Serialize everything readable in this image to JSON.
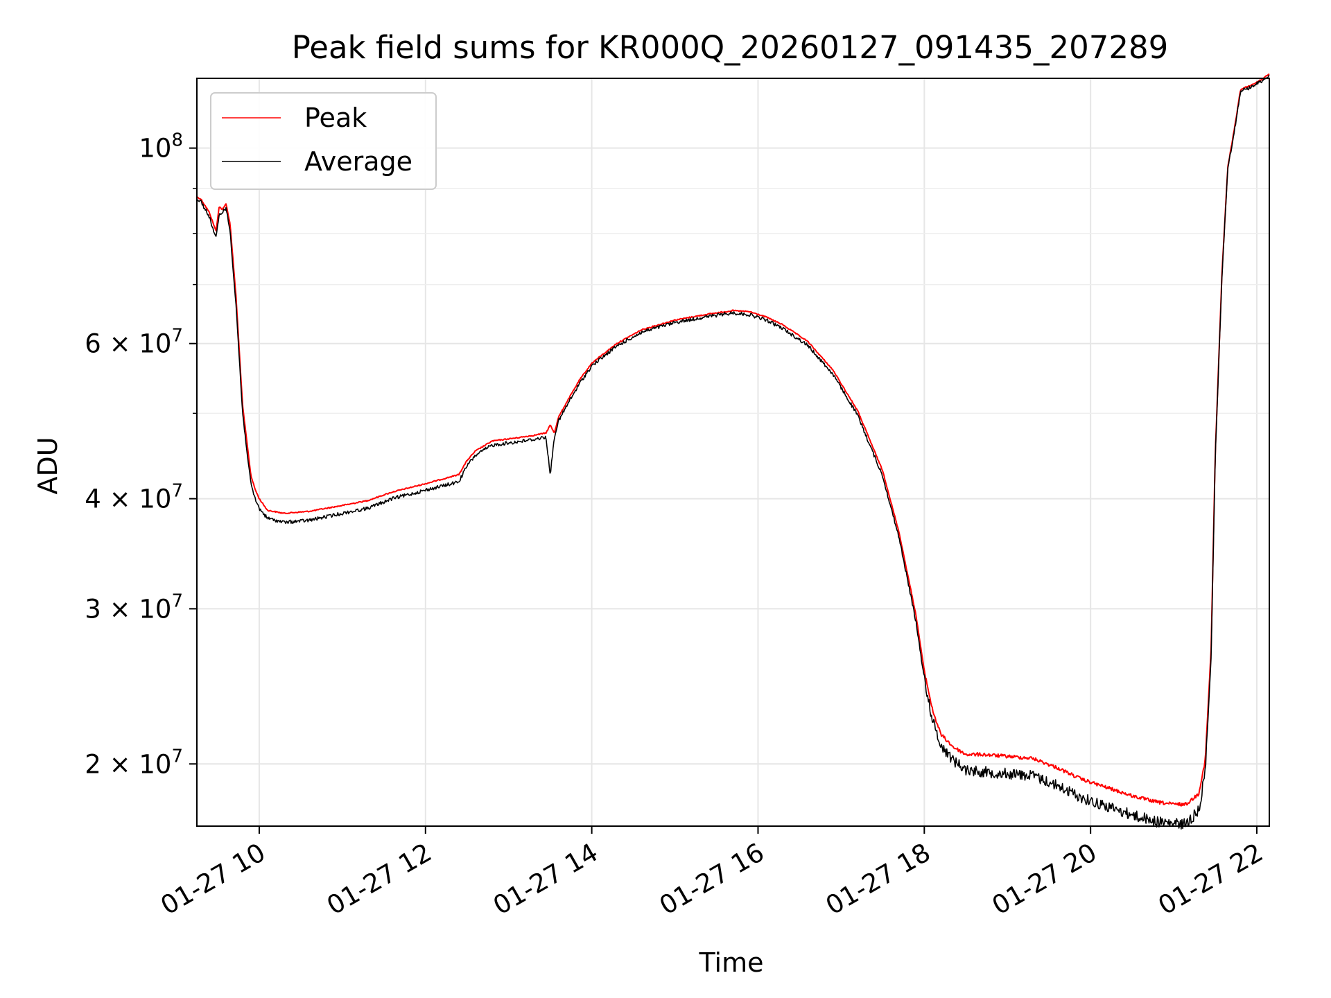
{
  "chart_data": {
    "type": "line",
    "title": "Peak field sums for KR000Q_20260127_091435_207289",
    "xlabel": "Time",
    "ylabel": "ADU",
    "y_scale": "log",
    "x_unit": "hours",
    "xlim": [
      9.25,
      22.15
    ],
    "ylim": [
      17000000,
      120000000
    ],
    "grid": true,
    "legend_position": "upper-left",
    "x_ticks": [
      {
        "value": 10,
        "label": "01-27 10"
      },
      {
        "value": 12,
        "label": "01-27 12"
      },
      {
        "value": 14,
        "label": "01-27 14"
      },
      {
        "value": 16,
        "label": "01-27 16"
      },
      {
        "value": 18,
        "label": "01-27 18"
      },
      {
        "value": 20,
        "label": "01-27 20"
      },
      {
        "value": 22,
        "label": "01-27 22"
      }
    ],
    "y_major_ticks": [
      {
        "value": 20000000,
        "coef": "2",
        "exp": "7"
      },
      {
        "value": 30000000,
        "coef": "3",
        "exp": "7"
      },
      {
        "value": 40000000,
        "coef": "4",
        "exp": "7"
      },
      {
        "value": 60000000,
        "coef": "6",
        "exp": "7"
      },
      {
        "value": 100000000,
        "coef": "",
        "exp": "8"
      }
    ],
    "y_minor_ticks": [
      50000000,
      70000000,
      80000000,
      90000000
    ],
    "series": [
      {
        "name": "Peak",
        "color": "#ff0000",
        "noise": 0.5,
        "x": [
          9.25,
          9.3,
          9.4,
          9.48,
          9.52,
          9.55,
          9.6,
          9.65,
          9.72,
          9.8,
          9.9,
          9.95,
          10.0,
          10.1,
          10.3,
          10.6,
          11.0,
          11.3,
          11.6,
          12.0,
          12.4,
          12.5,
          12.6,
          12.8,
          13.1,
          13.3,
          13.45,
          13.5,
          13.55,
          13.6,
          13.7,
          13.85,
          14.0,
          14.3,
          14.6,
          15.0,
          15.4,
          15.7,
          15.9,
          16.1,
          16.3,
          16.6,
          16.9,
          17.2,
          17.5,
          17.7,
          17.9,
          18.0,
          18.1,
          18.2,
          18.35,
          18.5,
          18.7,
          19.0,
          19.3,
          19.6,
          19.9,
          20.2,
          20.5,
          20.8,
          21.0,
          21.15,
          21.3,
          21.38,
          21.45,
          21.5,
          21.58,
          21.65,
          21.75,
          21.8,
          21.82,
          21.9,
          22.05,
          22.15
        ],
        "y": [
          88000000,
          87500000,
          84500000,
          80500000,
          86000000,
          85000000,
          86500000,
          82000000,
          68000000,
          51000000,
          42500000,
          41000000,
          40000000,
          38800000,
          38500000,
          38700000,
          39300000,
          39800000,
          40700000,
          41600000,
          42600000,
          44200000,
          45300000,
          46500000,
          46900000,
          47200000,
          47500000,
          48500000,
          47500000,
          49500000,
          51500000,
          54500000,
          57000000,
          60000000,
          62200000,
          63800000,
          64800000,
          65400000,
          65200000,
          64300000,
          63000000,
          60300000,
          56000000,
          50300000,
          43000000,
          36500000,
          29500000,
          25500000,
          23000000,
          21600000,
          20900000,
          20500000,
          20500000,
          20400000,
          20300000,
          19800000,
          19200000,
          18800000,
          18400000,
          18100000,
          18000000,
          18000000,
          18500000,
          20200000,
          27000000,
          45000000,
          72000000,
          95000000,
          108000000,
          116000000,
          116800000,
          117500000,
          119500000,
          121500000
        ]
      },
      {
        "name": "Average",
        "color": "#000000",
        "noise": 1.6,
        "x": [
          9.25,
          9.3,
          9.4,
          9.48,
          9.52,
          9.55,
          9.6,
          9.65,
          9.72,
          9.8,
          9.9,
          9.95,
          10.0,
          10.1,
          10.3,
          10.6,
          11.0,
          11.3,
          11.6,
          12.0,
          12.4,
          12.5,
          12.6,
          12.8,
          13.1,
          13.3,
          13.45,
          13.5,
          13.55,
          13.6,
          13.7,
          13.85,
          14.0,
          14.3,
          14.6,
          15.0,
          15.4,
          15.7,
          15.9,
          16.1,
          16.3,
          16.6,
          16.9,
          17.2,
          17.5,
          17.7,
          17.9,
          18.0,
          18.1,
          18.2,
          18.35,
          18.5,
          18.7,
          19.0,
          19.3,
          19.6,
          19.9,
          20.2,
          20.5,
          20.8,
          21.0,
          21.15,
          21.3,
          21.38,
          21.45,
          21.5,
          21.58,
          21.65,
          21.75,
          21.8,
          21.82,
          21.9,
          22.05,
          22.15
        ],
        "y": [
          87500000,
          87000000,
          83500000,
          79000000,
          84000000,
          84500000,
          85500000,
          80500000,
          66500000,
          50000000,
          41500000,
          40000000,
          39000000,
          38000000,
          37600000,
          37800000,
          38500000,
          39000000,
          40000000,
          40900000,
          41800000,
          43600000,
          44800000,
          46000000,
          46400000,
          46700000,
          47000000,
          42500000,
          47000000,
          49000000,
          51000000,
          54000000,
          56600000,
          59600000,
          61800000,
          63400000,
          64400000,
          65000000,
          64700000,
          63800000,
          62400000,
          59700000,
          55400000,
          49700000,
          42400000,
          36000000,
          29000000,
          25000000,
          22400000,
          21000000,
          20200000,
          19700000,
          19600000,
          19500000,
          19400000,
          18900000,
          18300000,
          17900000,
          17500000,
          17200000,
          17100000,
          17100000,
          17700000,
          19600000,
          26500000,
          44500000,
          71500000,
          94500000,
          107500000,
          115500000,
          116300000,
          117000000,
          119000000,
          121000000
        ]
      }
    ]
  }
}
